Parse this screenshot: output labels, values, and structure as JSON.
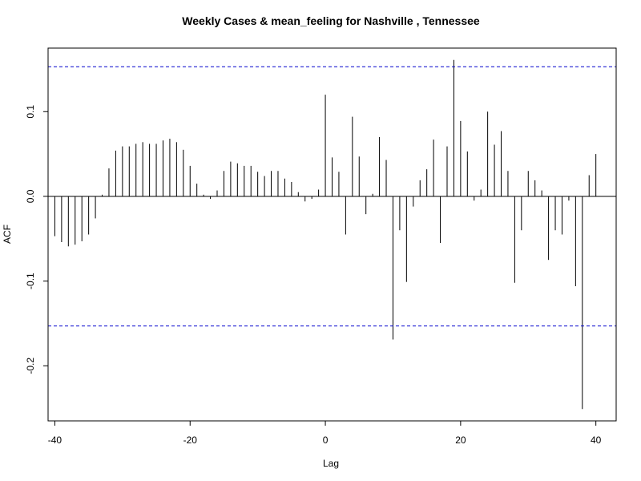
{
  "chart_data": {
    "type": "bar",
    "title": "Weekly Cases & mean_feeling for Nashville , Tennessee",
    "xlabel": "Lag",
    "ylabel": "ACF",
    "xlim": [
      -41,
      43
    ],
    "ylim": [
      -0.265,
      0.175
    ],
    "x_ticks": [
      -40,
      -20,
      0,
      20,
      40
    ],
    "x_tick_labels": [
      "-40",
      "-20",
      "0",
      "20",
      "40"
    ],
    "y_ticks": [
      -0.2,
      -0.1,
      0.0,
      0.1
    ],
    "y_tick_labels": [
      "-0.2",
      "-0.1",
      "0.0",
      "0.1"
    ],
    "confidence_bound": 0.153,
    "grid": false,
    "colors": {
      "bars": "#000000",
      "confidence_lines": "#0000cd",
      "axes": "#000000"
    },
    "x": [
      -40,
      -39,
      -38,
      -37,
      -36,
      -35,
      -34,
      -33,
      -32,
      -31,
      -30,
      -29,
      -28,
      -27,
      -26,
      -25,
      -24,
      -23,
      -22,
      -21,
      -20,
      -19,
      -18,
      -17,
      -16,
      -15,
      -14,
      -13,
      -12,
      -11,
      -10,
      -9,
      -8,
      -7,
      -6,
      -5,
      -4,
      -3,
      -2,
      -1,
      0,
      1,
      2,
      3,
      4,
      5,
      6,
      7,
      8,
      9,
      10,
      11,
      12,
      13,
      14,
      15,
      16,
      17,
      18,
      19,
      20,
      21,
      22,
      23,
      24,
      25,
      26,
      27,
      28,
      29,
      30,
      31,
      32,
      33,
      34,
      35,
      36,
      37,
      38,
      39,
      40
    ],
    "values": [
      -0.047,
      -0.054,
      -0.059,
      -0.057,
      -0.053,
      -0.045,
      -0.026,
      0.002,
      0.033,
      0.054,
      0.059,
      0.059,
      0.062,
      0.064,
      0.062,
      0.062,
      0.066,
      0.068,
      0.064,
      0.055,
      0.036,
      0.015,
      0.002,
      -0.003,
      0.007,
      0.03,
      0.041,
      0.039,
      0.036,
      0.036,
      0.029,
      0.024,
      0.03,
      0.03,
      0.021,
      0.017,
      0.005,
      -0.006,
      -0.003,
      0.008,
      0.12,
      0.046,
      0.029,
      -0.045,
      0.094,
      0.047,
      -0.021,
      0.003,
      0.07,
      0.043,
      -0.169,
      -0.04,
      -0.101,
      -0.012,
      0.019,
      0.032,
      0.067,
      -0.055,
      0.059,
      0.161,
      0.089,
      0.053,
      -0.005,
      0.008,
      0.1,
      0.061,
      0.077,
      0.03,
      -0.102,
      -0.04,
      0.03,
      0.019,
      0.007,
      -0.075,
      -0.04,
      -0.045,
      -0.005,
      -0.106,
      -0.251,
      0.025,
      0.05
    ]
  }
}
